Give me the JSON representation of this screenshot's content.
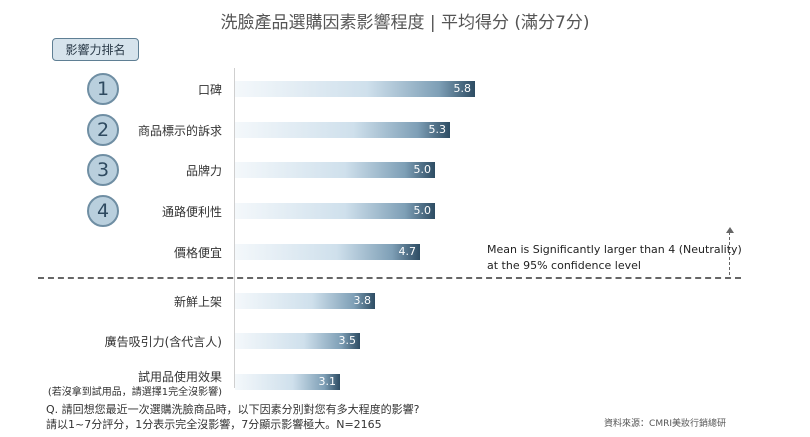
{
  "title": "洗臉產品選購因素影響程度 | 平均得分 (滿分7分)",
  "rank_badge": "影響力排名",
  "ranks": [
    "1",
    "2",
    "3",
    "4"
  ],
  "note": {
    "line1": "Mean is Significantly larger than 4 (Neutrality)",
    "line2": "at the 95% confidence level"
  },
  "question": {
    "line1": "Q. 請回想您最近一次選購洗臉商品時，以下因素分別對您有多大程度的影響?",
    "line2": "請以1~7分評分，1分表示完全沒影響，7分顯示影響極大。N=2165"
  },
  "source": "資料來源：CMRI美妝行銷總研",
  "colors": {
    "bar_dark": "#2d4c63",
    "bar_light": "#cfe0ec",
    "circle_fill": "#b9cfdd",
    "circle_border": "#6f8ea3"
  },
  "chart_data": {
    "type": "bar",
    "orientation": "horizontal",
    "categories": [
      "口碑",
      "商品標示的訴求",
      "品牌力",
      "通路便利性",
      "價格便宜",
      "新鮮上架",
      "廣告吸引力(含代言人)",
      "試用品使用效果"
    ],
    "category_note": "(若沒拿到試用品，請選擇1完全沒影響)",
    "values": [
      5.8,
      5.3,
      5.0,
      5.0,
      4.7,
      3.8,
      3.5,
      3.1
    ],
    "value_labels": [
      "5.8",
      "5.3",
      "5.0",
      "5.0",
      "4.7",
      "3.8",
      "3.5",
      "3.1"
    ],
    "title": "洗臉產品選購因素影響程度 | 平均得分 (滿分7分)",
    "xlabel": "",
    "ylabel": "",
    "xlim": [
      1,
      7
    ],
    "grid": false
  }
}
